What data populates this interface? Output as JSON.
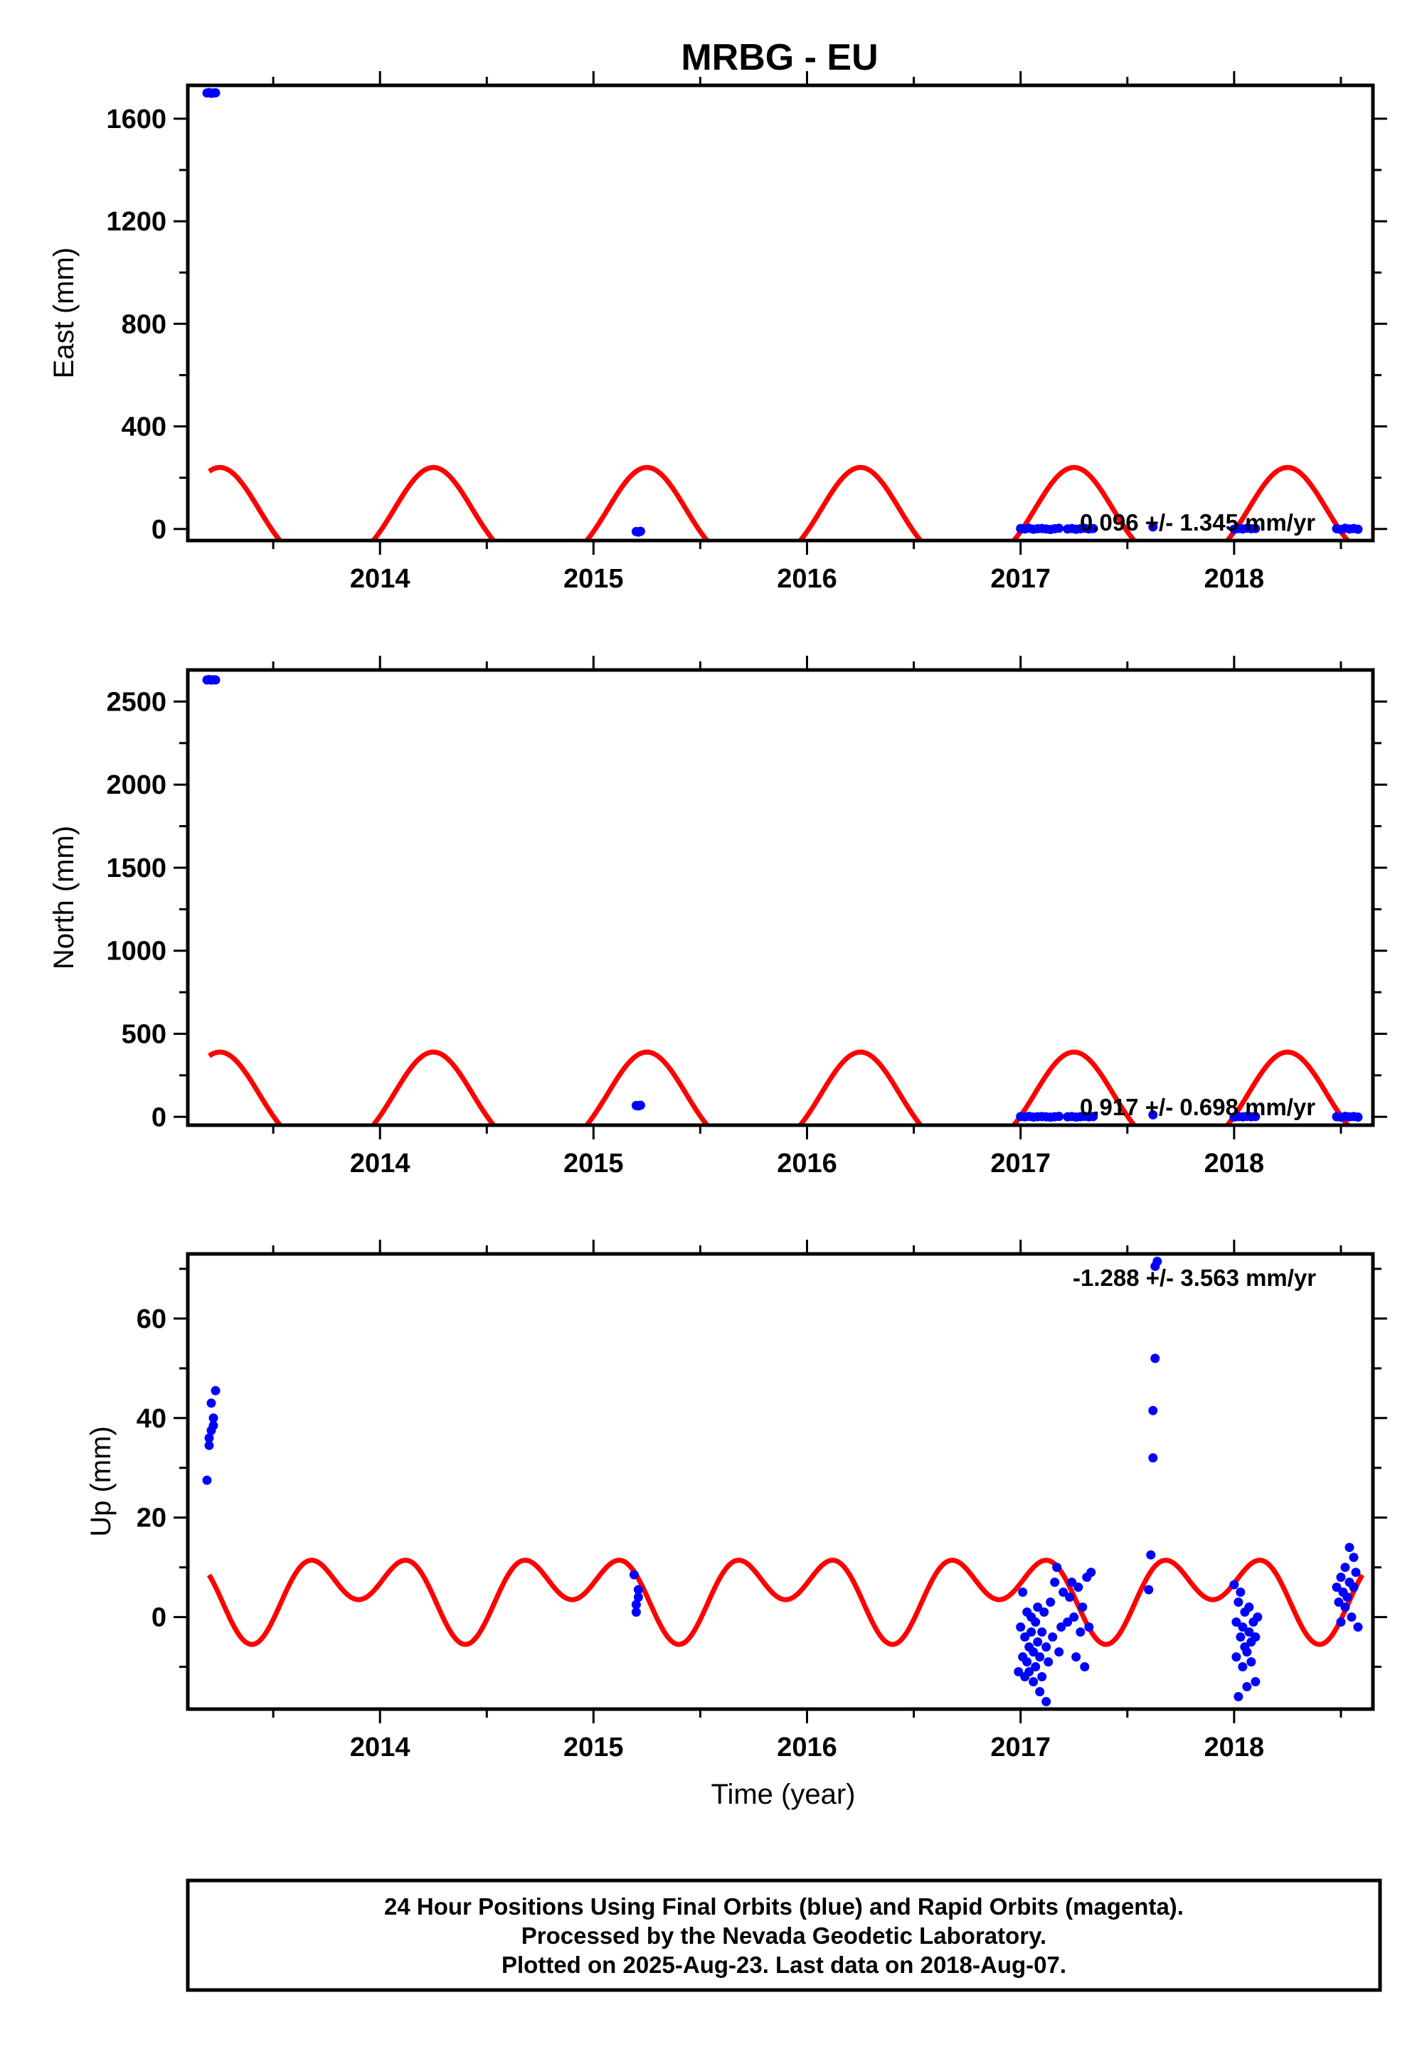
{
  "figure": {
    "title": "MRBG - EU",
    "xlabel": "Time (year)",
    "footer": [
      "24 Hour Positions Using Final Orbits (blue) and Rapid Orbits (magenta).",
      "Processed by the Nevada Geodetic Laboratory.",
      "Plotted on 2025-Aug-23. Last data on 2018-Aug-07."
    ],
    "colors": {
      "data": "#0000ff",
      "model": "#ff0000",
      "frame": "#000000"
    }
  },
  "chart_data": [
    {
      "type": "scatter",
      "ylabel": "East (mm)",
      "rate_label": "0.096 +/- 1.345 mm/yr",
      "xlim": [
        2013.1,
        2018.65
      ],
      "ylim": [
        -45,
        1730
      ],
      "xticks": [
        2014,
        2015,
        2016,
        2017,
        2018
      ],
      "yticks": [
        0,
        400,
        800,
        1200,
        1600
      ],
      "grid": false,
      "model": {
        "mean": 20,
        "a1": 190,
        "p1": 0.25,
        "a2": 30,
        "p2": 0.25
      },
      "series": [
        {
          "x": [
            2013.19,
            2013.2,
            2013.21,
            2013.22,
            2013.23
          ],
          "y": [
            1700,
            1702,
            1699,
            1700,
            1701
          ]
        },
        {
          "x": [
            2015.2,
            2015.21,
            2015.22
          ],
          "y": [
            -10,
            -12,
            -9
          ]
        },
        {
          "x": [
            2017.0,
            2017.02,
            2017.04,
            2017.06,
            2017.08,
            2017.1,
            2017.12,
            2017.14,
            2017.16,
            2017.18,
            2017.22,
            2017.24,
            2017.26,
            2017.28,
            2017.3,
            2017.32,
            2017.34,
            2017.62,
            2018.0,
            2018.02,
            2018.04,
            2018.06,
            2018.08,
            2018.1,
            2018.48,
            2018.5,
            2018.52,
            2018.54,
            2018.56,
            2018.58
          ],
          "y": [
            2,
            0,
            3,
            -1,
            1,
            2,
            0,
            -2,
            1,
            3,
            0,
            2,
            -1,
            1,
            3,
            0,
            2,
            8,
            -1,
            2,
            0,
            3,
            1,
            2,
            1,
            -2,
            3,
            0,
            2,
            -1
          ]
        }
      ]
    },
    {
      "type": "scatter",
      "ylabel": "North (mm)",
      "rate_label": "0.917 +/- 0.698 mm/yr",
      "xlim": [
        2013.1,
        2018.65
      ],
      "ylim": [
        -50,
        2690
      ],
      "xticks": [
        2014,
        2015,
        2016,
        2017,
        2018
      ],
      "yticks": [
        0,
        500,
        1000,
        1500,
        2000,
        2500
      ],
      "grid": false,
      "model": {
        "mean": 50,
        "a1": 295,
        "p1": 0.25,
        "a2": 45,
        "p2": 0.25
      },
      "series": [
        {
          "x": [
            2013.19,
            2013.2,
            2013.21,
            2013.22,
            2013.23
          ],
          "y": [
            2630,
            2632,
            2629,
            2631,
            2630
          ]
        },
        {
          "x": [
            2015.2,
            2015.21,
            2015.22
          ],
          "y": [
            68,
            66,
            70
          ]
        },
        {
          "x": [
            2017.0,
            2017.02,
            2017.04,
            2017.06,
            2017.08,
            2017.1,
            2017.12,
            2017.14,
            2017.16,
            2017.18,
            2017.22,
            2017.24,
            2017.26,
            2017.28,
            2017.3,
            2017.32,
            2017.34,
            2017.62,
            2018.0,
            2018.02,
            2018.04,
            2018.06,
            2018.08,
            2018.1,
            2018.48,
            2018.5,
            2018.52,
            2018.54,
            2018.56,
            2018.58
          ],
          "y": [
            2,
            0,
            3,
            -1,
            1,
            2,
            0,
            -2,
            1,
            3,
            0,
            2,
            -1,
            1,
            3,
            0,
            2,
            12,
            -1,
            2,
            0,
            3,
            1,
            2,
            1,
            -2,
            3,
            0,
            2,
            -1
          ]
        }
      ]
    },
    {
      "type": "scatter",
      "ylabel": "Up (mm)",
      "rate_label": "-1.288 +/- 3.563 mm/yr",
      "xlim": [
        2013.1,
        2018.65
      ],
      "ylim": [
        -18.5,
        73
      ],
      "xticks": [
        2014,
        2015,
        2016,
        2017,
        2018
      ],
      "yticks": [
        0,
        20,
        40,
        60
      ],
      "grid": false,
      "model": {
        "mean": 5,
        "a1": 4.5,
        "p1": 0.9,
        "a2": 6,
        "p2": 0.15
      },
      "series": [
        {
          "x": [
            2013.19,
            2013.2,
            2013.2,
            2013.21,
            2013.21,
            2013.22,
            2013.22,
            2013.23
          ],
          "y": [
            27.5,
            34.5,
            36,
            37.5,
            43,
            38.5,
            40,
            45.5
          ]
        },
        {
          "x": [
            2015.19,
            2015.2,
            2015.2,
            2015.21,
            2015.21
          ],
          "y": [
            8.5,
            2.5,
            1,
            4,
            5.5
          ]
        },
        {
          "x": [
            2016.99,
            2017.0,
            2017.01,
            2017.01,
            2017.02,
            2017.02,
            2017.03,
            2017.03,
            2017.04,
            2017.04,
            2017.05,
            2017.05,
            2017.06,
            2017.06,
            2017.07,
            2017.07,
            2017.08,
            2017.08,
            2017.09,
            2017.09,
            2017.1,
            2017.1,
            2017.11,
            2017.12,
            2017.12,
            2017.13,
            2017.14,
            2017.15,
            2017.16,
            2017.17,
            2017.18,
            2017.19,
            2017.2,
            2017.22,
            2017.23,
            2017.24,
            2017.25,
            2017.26,
            2017.27,
            2017.28,
            2017.29,
            2017.3,
            2017.31,
            2017.32,
            2017.33
          ],
          "y": [
            -11,
            -2,
            -8,
            5,
            -12,
            -4,
            -9,
            1,
            -6,
            -11,
            0,
            -3,
            -13,
            -7,
            -1,
            -10,
            -5,
            2,
            -8,
            -15,
            -3,
            -12,
            1,
            -6,
            -17,
            -9,
            3,
            -4,
            7,
            10,
            -7,
            -2,
            5,
            -1,
            4,
            7,
            0,
            -8,
            6,
            -3,
            2,
            -10,
            8,
            -2,
            9
          ]
        },
        {
          "x": [
            2017.6,
            2017.61,
            2017.62,
            2017.62,
            2017.63,
            2017.63,
            2017.64
          ],
          "y": [
            5.5,
            12.5,
            32,
            41.5,
            52,
            70.5,
            71.5
          ]
        },
        {
          "x": [
            2018.0,
            2018.01,
            2018.01,
            2018.02,
            2018.02,
            2018.03,
            2018.03,
            2018.04,
            2018.04,
            2018.05,
            2018.05,
            2018.06,
            2018.06,
            2018.07,
            2018.07,
            2018.08,
            2018.08,
            2018.09,
            2018.1,
            2018.1,
            2018.11
          ],
          "y": [
            6.5,
            -1,
            -8,
            3,
            -16,
            -4,
            5,
            -10,
            -2,
            -6,
            1,
            -14,
            -7,
            -3,
            2,
            -9,
            -5,
            -1,
            -13,
            -4,
            0
          ]
        },
        {
          "x": [
            2018.48,
            2018.49,
            2018.5,
            2018.5,
            2018.51,
            2018.52,
            2018.52,
            2018.53,
            2018.54,
            2018.54,
            2018.55,
            2018.56,
            2018.56,
            2018.57,
            2018.58
          ],
          "y": [
            6,
            3,
            -1,
            8,
            5,
            2,
            10,
            4,
            7,
            14,
            0,
            12,
            6,
            9,
            -2
          ]
        }
      ]
    }
  ]
}
